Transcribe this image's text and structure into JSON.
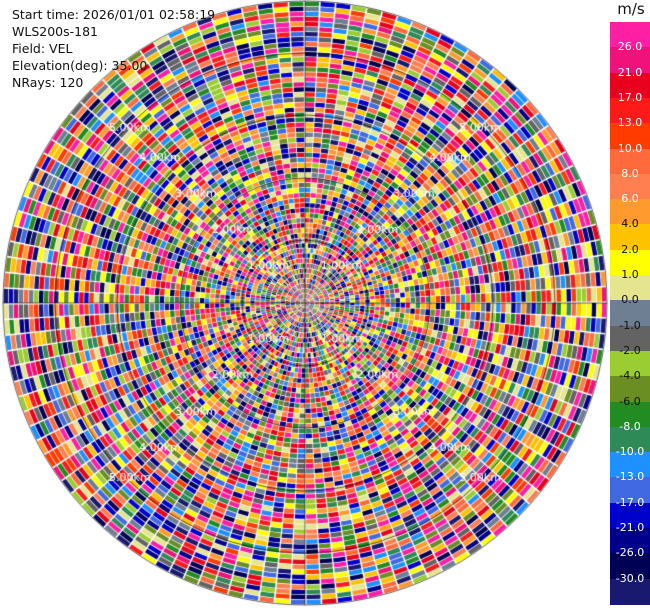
{
  "info": {
    "start_time": "Start time: 2026/01/01 02:58:19",
    "instrument": "WLS200s-181",
    "field": "Field: VEL",
    "elevation": "Elevation(deg): 35.00",
    "nrays": "NRays: 120"
  },
  "colorbar": {
    "unit": "m/s",
    "ticks": [
      "26.0",
      "21.0",
      "17.0",
      "13.0",
      "10.0",
      "8.0",
      "6.0",
      "4.0",
      "2.0",
      "1.0",
      "0.0",
      "-1.0",
      "-2.0",
      "-4.0",
      "-6.0",
      "-8.0",
      "-10.0",
      "-13.0",
      "-17.0",
      "-21.0",
      "-26.0",
      "-30.0"
    ],
    "colors": [
      "#ff1fa4",
      "#f0127a",
      "#e8001c",
      "#ff1a1a",
      "#ff3b00",
      "#ff6a3c",
      "#ff7f50",
      "#ff9b2e",
      "#ffc200",
      "#ffff00",
      "#e5e590",
      "#6e7f93",
      "#636363",
      "#9acd32",
      "#6b8e23",
      "#228b22",
      "#2e8b57",
      "#1e90ff",
      "#4169e1",
      "#0000cd",
      "#00008b",
      "#000055",
      "#191970"
    ]
  },
  "range_rings": {
    "labels": [
      "1.00km",
      "2.00km",
      "3.00km",
      "4.00km",
      "5.00km"
    ]
  }
}
